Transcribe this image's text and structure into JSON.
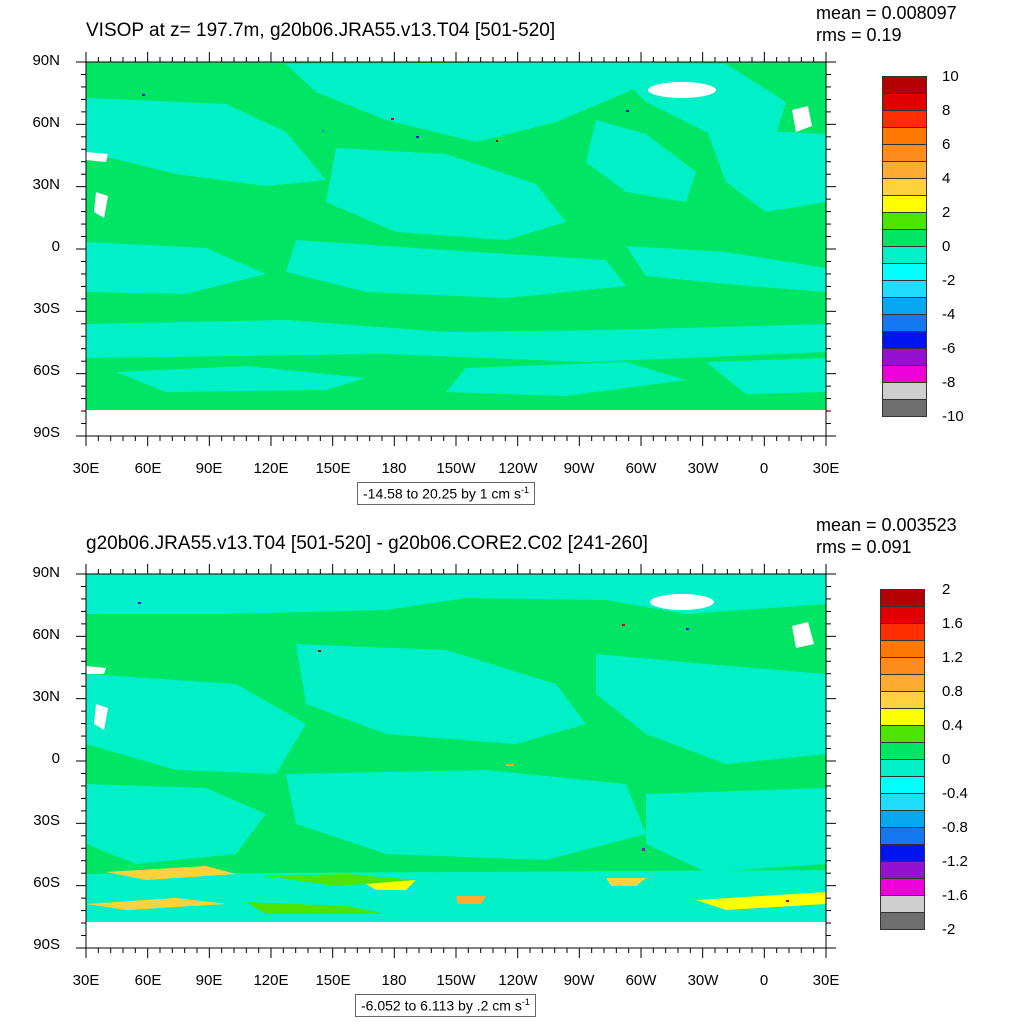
{
  "colors": [
    "#6e6e6e",
    "#cfcfcf",
    "#ee00dd",
    "#9412cf",
    "#0014f0",
    "#1478f0",
    "#06a8f0",
    "#20ddff",
    "#00ffff",
    "#00f0c8",
    "#00e664",
    "#4de400",
    "#ffff00",
    "#ffd23d",
    "#ffaa32",
    "#ff8c1e",
    "#ff7800",
    "#ff2e00",
    "#e00000",
    "#b40000"
  ],
  "lat_labels": [
    "90N",
    "60N",
    "30N",
    "0",
    "30S",
    "60S",
    "90S"
  ],
  "lon_labels": [
    "30E",
    "60E",
    "90E",
    "120E",
    "150E",
    "180",
    "150W",
    "120W",
    "90W",
    "60W",
    "30W",
    "0",
    "30E"
  ],
  "panels": [
    {
      "title": "VISOP at z= 197.7m, g20b06.JRA55.v13.T04 [501-520]",
      "mean": "mean = 0.008097",
      "rms": "rms = 0.19",
      "range_main": "-14.58 to 20.25 by 1 cm s",
      "range_sup": "-1",
      "cb_labels": [
        "10",
        "8",
        "6",
        "4",
        "2",
        "0",
        "-2",
        "-4",
        "-6",
        "-8",
        "-10"
      ]
    },
    {
      "title": "g20b06.JRA55.v13.T04 [501-520] - g20b06.CORE2.C02 [241-260]",
      "mean": "mean = 0.003523",
      "rms": "rms = 0.091",
      "range_main": "-6.052 to 6.113 by .2 cm s",
      "range_sup": "-1",
      "cb_labels": [
        "2",
        "1.6",
        "1.2",
        "0.8",
        "0.4",
        "0",
        "-0.4",
        "-0.8",
        "-1.2",
        "-1.6",
        "-2"
      ]
    }
  ]
}
